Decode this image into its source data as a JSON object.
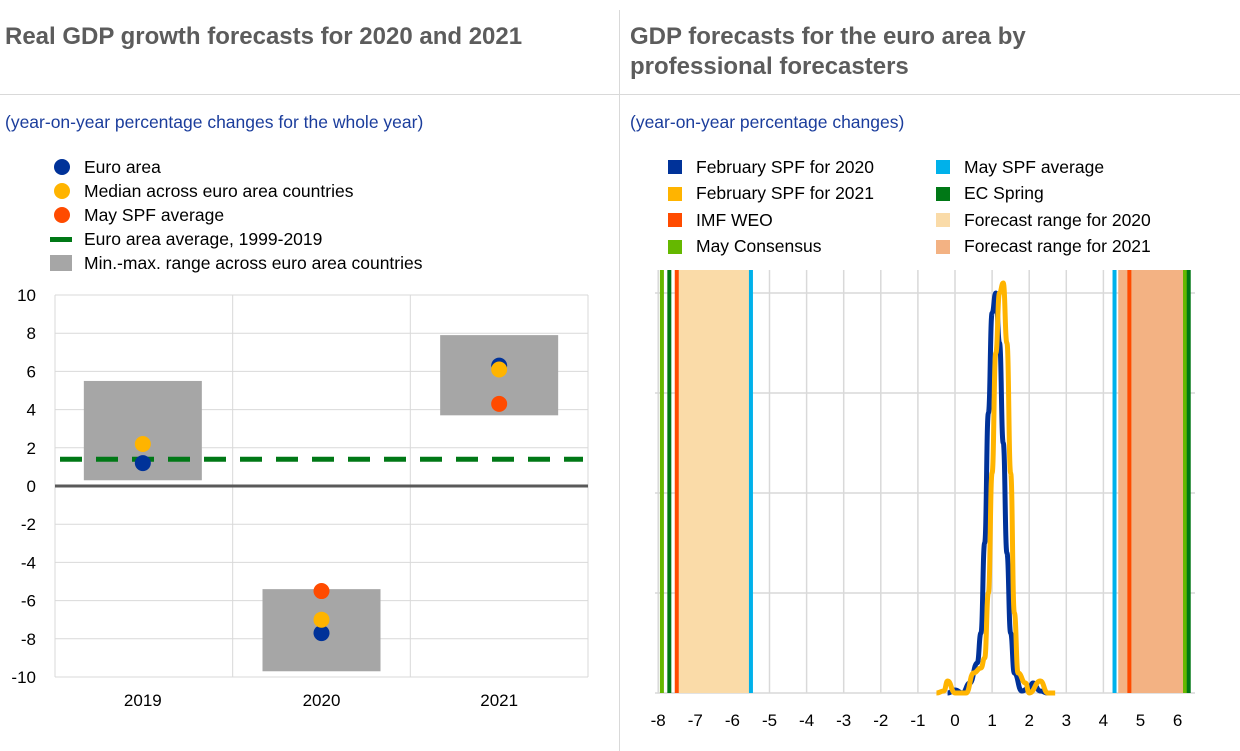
{
  "left": {
    "title": "Real GDP growth forecasts for 2020 and 2021",
    "subtitle": "(year-on-year percentage changes for the whole year)",
    "legend": [
      {
        "label": "Euro area",
        "color": "#003299",
        "kind": "dot"
      },
      {
        "label": "Median across euro area countries",
        "color": "#ffb400",
        "kind": "dot"
      },
      {
        "label": "May SPF average",
        "color": "#ff4b00",
        "kind": "dot"
      },
      {
        "label": "Euro area average, 1999-2019",
        "color": "#007816",
        "kind": "dash"
      },
      {
        "label": "Min.-max. range across euro area countries",
        "color": "#a6a6a6",
        "kind": "box"
      }
    ]
  },
  "right": {
    "title_line1": "GDP forecasts for the euro area by",
    "title_line2": "professional forecasters",
    "subtitle": "(year-on-year percentage changes)",
    "legend": [
      {
        "label": "February SPF for 2020",
        "color": "#003299"
      },
      {
        "label": "May SPF average",
        "color": "#00b1ea"
      },
      {
        "label": "February SPF for 2021",
        "color": "#ffb400"
      },
      {
        "label": "EC Spring",
        "color": "#007816"
      },
      {
        "label": "IMF WEO",
        "color": "#ff4b00"
      },
      {
        "label": "Forecast range for 2020",
        "color": "#fadba8"
      },
      {
        "label": "May Consensus",
        "color": "#65b800"
      },
      {
        "label": "Forecast range for 2021",
        "color": "#f3b283"
      }
    ]
  },
  "chart_data": [
    {
      "type": "scatter",
      "title": "Real GDP growth forecasts for 2020 and 2021",
      "categories": [
        "2019",
        "2020",
        "2021"
      ],
      "ylim": [
        -10,
        10
      ],
      "yticks": [
        "10",
        "8",
        "6",
        "4",
        "2",
        "0",
        "-2",
        "-4",
        "-6",
        "-8",
        "-10"
      ],
      "series": [
        {
          "name": "Euro area",
          "values": [
            1.2,
            -7.7,
            6.3
          ]
        },
        {
          "name": "Median across euro area countries",
          "values": [
            2.2,
            -7.0,
            6.1
          ]
        },
        {
          "name": "May SPF average",
          "values": [
            null,
            -5.5,
            4.3
          ]
        }
      ],
      "ranges": {
        "name": "Min.-max. range across euro area countries",
        "min": [
          0.3,
          -9.7,
          3.7
        ],
        "max": [
          5.5,
          -5.4,
          7.9
        ]
      },
      "average": {
        "name": "Euro area average, 1999-2019",
        "value": 1.4
      }
    },
    {
      "type": "line",
      "title": "GDP forecasts for the euro area by professional forecasters",
      "xlim": [
        -8,
        6.5
      ],
      "xticks": [
        "-8",
        "-7",
        "-6",
        "-5",
        "-4",
        "-3",
        "-2",
        "-1",
        "0",
        "1",
        "2",
        "3",
        "4",
        "5",
        "6"
      ],
      "ylim": [
        0,
        4.2
      ],
      "series": [
        {
          "name": "February SPF for 2020",
          "points": [
            [
              -0.2,
              0
            ],
            [
              0,
              0.03
            ],
            [
              0.2,
              0
            ],
            [
              0.4,
              0.1
            ],
            [
              0.6,
              0.3
            ],
            [
              0.7,
              0.6
            ],
            [
              0.8,
              1.5
            ],
            [
              0.9,
              2.8
            ],
            [
              1.0,
              3.8
            ],
            [
              1.1,
              4.0
            ],
            [
              1.2,
              3.5
            ],
            [
              1.3,
              2.5
            ],
            [
              1.4,
              1.4
            ],
            [
              1.5,
              0.6
            ],
            [
              1.6,
              0.2
            ],
            [
              1.8,
              0.02
            ],
            [
              2.0,
              0.05
            ],
            [
              2.1,
              0.1
            ],
            [
              2.3,
              0.02
            ],
            [
              2.5,
              0
            ]
          ]
        },
        {
          "name": "February SPF for 2021",
          "points": [
            [
              -0.5,
              0
            ],
            [
              -0.3,
              0.02
            ],
            [
              -0.2,
              0.12
            ],
            [
              0,
              0
            ],
            [
              0.3,
              0
            ],
            [
              0.5,
              0.2
            ],
            [
              0.7,
              0.25
            ],
            [
              0.8,
              0.35
            ],
            [
              0.9,
              1.0
            ],
            [
              1.0,
              2.2
            ],
            [
              1.1,
              3.4
            ],
            [
              1.2,
              4.0
            ],
            [
              1.3,
              4.1
            ],
            [
              1.4,
              3.5
            ],
            [
              1.5,
              2.2
            ],
            [
              1.6,
              0.8
            ],
            [
              1.7,
              0.2
            ],
            [
              1.9,
              0.1
            ],
            [
              2.0,
              0
            ],
            [
              2.3,
              0.12
            ],
            [
              2.5,
              0
            ],
            [
              2.7,
              0
            ]
          ]
        }
      ],
      "ranges": [
        {
          "name": "Forecast range for 2020",
          "from": -7.5,
          "to": -5.5
        },
        {
          "name": "Forecast range for 2021",
          "from": 4.4,
          "to": 6.2
        }
      ],
      "vlines": [
        {
          "name": "May Consensus",
          "values": [
            -7.9,
            6.2
          ]
        },
        {
          "name": "EC Spring",
          "values": [
            -7.7,
            6.3
          ]
        },
        {
          "name": "IMF WEO",
          "values": [
            -7.5,
            4.7
          ]
        },
        {
          "name": "May SPF average",
          "values": [
            -5.5,
            4.3
          ]
        }
      ]
    }
  ]
}
